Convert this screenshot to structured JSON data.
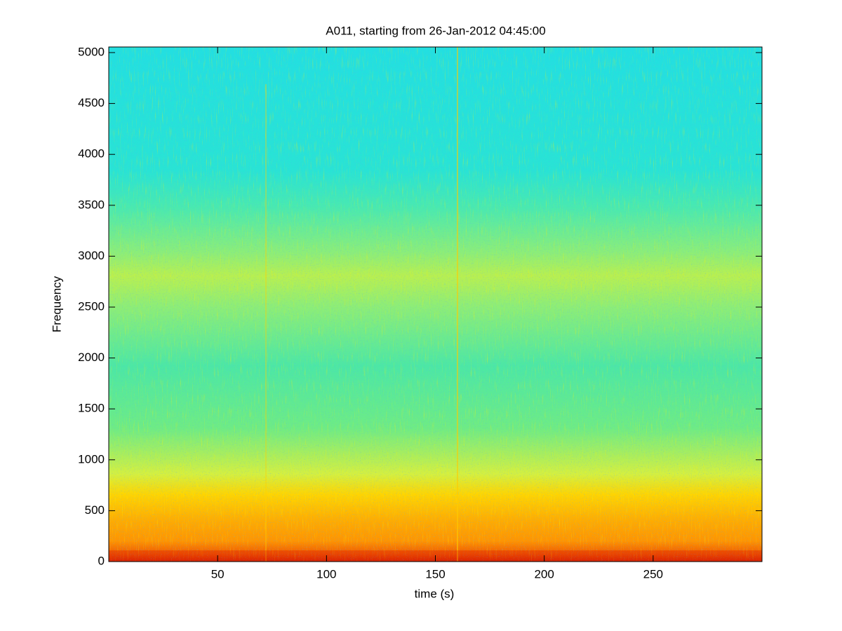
{
  "chart_data": {
    "type": "spectrogram",
    "title": "A011, starting from 26-Jan-2012 04:45:00",
    "xlabel": "time (s)",
    "ylabel": "Frequency",
    "xlim": [
      0,
      300
    ],
    "ylim": [
      0,
      5055
    ],
    "xticks": [
      50,
      100,
      150,
      200,
      250
    ],
    "yticks": [
      0,
      500,
      1000,
      1500,
      2000,
      2500,
      3000,
      3500,
      4000,
      4500,
      5000
    ]
  }
}
